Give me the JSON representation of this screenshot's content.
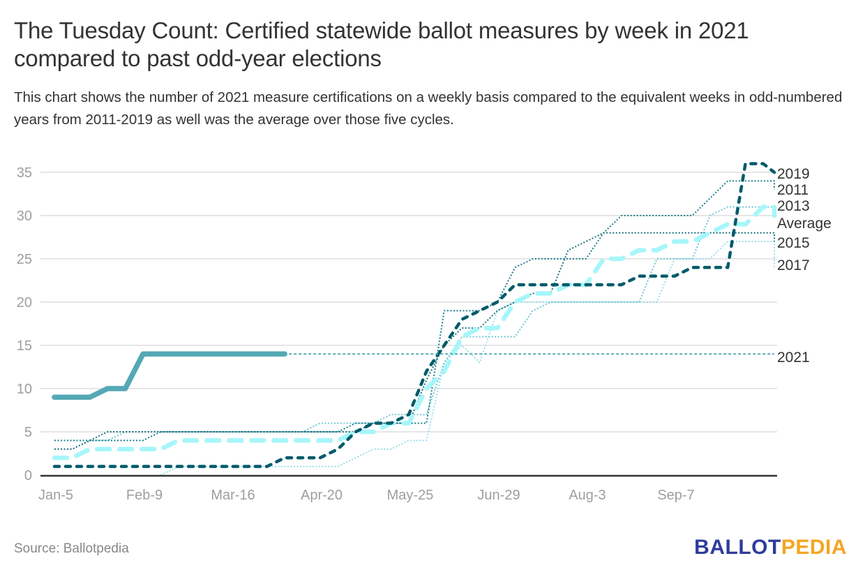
{
  "header": {
    "title": "The Tuesday Count: Certified statewide ballot measures by week in 2021 compared to past odd-year elections",
    "subtitle": "This chart shows the number of 2021 measure certifications on a weekly basis compared to the equivalent weeks in odd-numbered years from 2011-2019 as well was the average over those five cycles."
  },
  "footer": {
    "source": "Source: Ballotpedia",
    "logo_part1": "BALLOT",
    "logo_part2": "PEDIA",
    "logo_color1": "#2E3C9C",
    "logo_color2": "#F4A623"
  },
  "chart_data": {
    "type": "line",
    "title": "The Tuesday Count: Certified statewide ballot measures by week in 2021 compared to past odd-year elections",
    "xlabel": "",
    "ylabel": "",
    "ylim": [
      0,
      35
    ],
    "yticks": [
      0,
      5,
      10,
      15,
      20,
      25,
      30,
      35
    ],
    "xtick_labels": [
      "Jan-5",
      "Feb-9",
      "Mar-16",
      "Apr-20",
      "May-25",
      "Jun-29",
      "Aug-3",
      "Sep-7"
    ],
    "xtick_weeks": [
      0,
      5,
      10,
      15,
      20,
      25,
      30,
      35
    ],
    "grid": true,
    "legend": "right (direct labels at line ends)",
    "weeks": [
      0,
      1,
      2,
      3,
      4,
      5,
      6,
      7,
      8,
      9,
      10,
      11,
      12,
      13,
      14,
      15,
      16,
      17,
      18,
      19,
      20,
      21,
      22,
      23,
      24,
      25,
      26,
      27,
      28,
      29,
      30,
      31,
      32,
      33,
      34,
      35,
      36,
      37,
      38,
      39,
      40
    ],
    "series": [
      {
        "name": "2021",
        "label": "2021",
        "color": "#55A8B5",
        "style": "solid",
        "values": [
          9,
          9,
          9,
          10,
          10,
          14,
          14,
          14,
          14,
          14,
          14,
          14,
          14,
          14
        ],
        "extension_value": 14
      },
      {
        "name": "2019",
        "label": "2019",
        "color": "#005B6A",
        "style": "dash-thick",
        "values": [
          1,
          1,
          1,
          1,
          1,
          1,
          1,
          1,
          1,
          1,
          1,
          1,
          1,
          2,
          2,
          2,
          3,
          5,
          6,
          6,
          7,
          12,
          15,
          18,
          19,
          20,
          22,
          22,
          22,
          22,
          22,
          22,
          22,
          23,
          23,
          23,
          24,
          24,
          24,
          36,
          36,
          35
        ]
      },
      {
        "name": "2011",
        "label": "2011",
        "color": "#1B7F8E",
        "style": "dot",
        "values": [
          4,
          4,
          4,
          4,
          4,
          4,
          5,
          5,
          5,
          5,
          5,
          5,
          5,
          5,
          5,
          5,
          5,
          6,
          6,
          6,
          6,
          6,
          19,
          19,
          19,
          20,
          24,
          25,
          25,
          25,
          25,
          28,
          30,
          30,
          30,
          30,
          30,
          32,
          34,
          34,
          34,
          34,
          33
        ]
      },
      {
        "name": "2013",
        "label": "2013",
        "color": "#6FC6D6",
        "style": "dot",
        "values": [
          3,
          3,
          4,
          4,
          5,
          5,
          5,
          5,
          5,
          5,
          5,
          5,
          5,
          5,
          5,
          6,
          6,
          6,
          6,
          7,
          7,
          7,
          13,
          16,
          16,
          16,
          16,
          19,
          20,
          20,
          20,
          20,
          20,
          20,
          25,
          25,
          25,
          30,
          31,
          31,
          31,
          31
        ]
      },
      {
        "name": "Average",
        "label": "Average",
        "color": "#A6F6FA",
        "style": "dash-wide",
        "values": [
          2,
          2,
          3,
          3,
          3,
          3,
          3,
          4,
          4,
          4,
          4,
          4,
          4,
          4,
          4,
          4,
          4,
          5,
          5,
          6,
          6,
          10,
          12,
          16,
          17,
          17,
          20,
          21,
          21,
          22,
          22,
          25,
          25,
          26,
          26,
          27,
          27,
          28,
          29,
          29,
          31,
          31,
          30
        ]
      },
      {
        "name": "2015",
        "label": "2015",
        "color": "#1B6E7D",
        "style": "dot",
        "values": [
          3,
          3,
          4,
          5,
          5,
          5,
          5,
          5,
          5,
          5,
          5,
          5,
          5,
          5,
          5,
          5,
          5,
          5,
          6,
          6,
          6,
          11,
          15,
          17,
          17,
          19,
          20,
          21,
          21,
          26,
          27,
          28,
          28,
          28,
          28,
          28,
          28,
          28,
          28,
          28,
          28,
          28,
          27
        ]
      },
      {
        "name": "2017",
        "label": "2017",
        "color": "#8ADCE8",
        "style": "dot-light",
        "values": [
          null,
          null,
          null,
          null,
          null,
          null,
          0,
          1,
          1,
          1,
          1,
          1,
          1,
          1,
          1,
          1,
          1,
          2,
          3,
          3,
          4,
          4,
          13,
          15,
          13,
          19,
          20,
          20,
          20,
          20,
          20,
          20,
          20,
          20,
          20,
          25,
          25,
          25,
          27,
          27,
          27,
          27,
          24
        ]
      }
    ]
  }
}
